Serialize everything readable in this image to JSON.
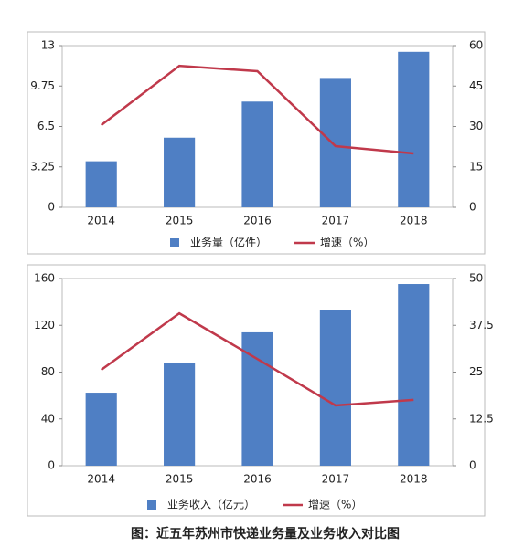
{
  "chart_data": [
    {
      "type": "bar",
      "categories": [
        "2014",
        "2015",
        "2016",
        "2017",
        "2018"
      ],
      "series": [
        {
          "name": "业务量（亿件）",
          "color": "#4f7fc4",
          "values": [
            3.7,
            5.6,
            8.5,
            10.4,
            12.5
          ]
        },
        {
          "name": "增速（%）",
          "color": "#c0394b",
          "type": "line",
          "axis": "y2",
          "values": [
            30.5,
            52.5,
            50.5,
            22.7,
            20
          ]
        }
      ],
      "ylim": [
        0,
        13
      ],
      "yticks": [
        0,
        3.25,
        6.5,
        9.75,
        13
      ],
      "y2lim": [
        0,
        60
      ],
      "y2ticks": [
        0,
        15,
        30,
        45,
        60
      ],
      "grid": false,
      "legend": "bottom"
    },
    {
      "type": "bar",
      "categories": [
        "2014",
        "2015",
        "2016",
        "2017",
        "2018"
      ],
      "series": [
        {
          "name": "业务收入（亿元）",
          "color": "#4f7fc4",
          "values": [
            62.4,
            88.2,
            114,
            132.7,
            155.3
          ]
        },
        {
          "name": "增速（%）",
          "color": "#c0394b",
          "type": "line",
          "axis": "y2",
          "values": [
            25.6,
            40.7,
            28.5,
            16.1,
            17.6
          ]
        }
      ],
      "ylim": [
        0,
        160
      ],
      "yticks": [
        0,
        40,
        80,
        120,
        160
      ],
      "y2lim": [
        0,
        50
      ],
      "y2ticks": [
        0,
        12.5,
        25,
        37.5,
        50
      ],
      "grid": false,
      "legend": "bottom"
    }
  ],
  "caption": "图：近五年苏州市快递业务量及业务收入对比图"
}
